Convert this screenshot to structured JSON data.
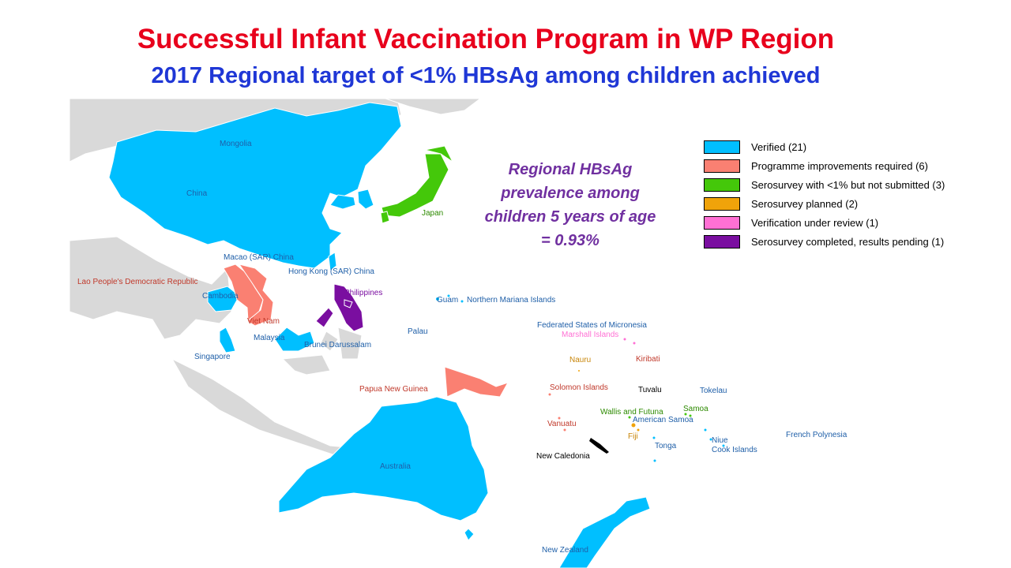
{
  "title": "Successful Infant Vaccination Program in WP Region",
  "subtitle": "2017  Regional target of <1% HBsAg among children achieved",
  "note": "Regional HBsAg prevalence among children 5 years of age = 0.93%",
  "colors": {
    "verified": "#00bfff",
    "improvements": "#fa8072",
    "not_submitted": "#44c80a",
    "planned": "#f0a30a",
    "under_review": "#ff70d4",
    "pending": "#7a0ea0",
    "background_land": "#d9d9d9"
  },
  "legend": [
    {
      "key": "verified",
      "label": "Verified (21)"
    },
    {
      "key": "improvements",
      "label": "Programme improvements required (6)"
    },
    {
      "key": "not_submitted",
      "label": "Serosurvey with <1% but not submitted (3)"
    },
    {
      "key": "planned",
      "label": "Serosurvey planned (2)"
    },
    {
      "key": "under_review",
      "label": "Verification under review (1)"
    },
    {
      "key": "pending",
      "label": "Serosurvey completed, results pending (1)"
    }
  ],
  "map_labels": [
    {
      "text": "Mongolia",
      "status": "verified"
    },
    {
      "text": "China",
      "status": "verified"
    },
    {
      "text": "Japan",
      "status": "not_submitted"
    },
    {
      "text": "Macao (SAR) China",
      "status": "verified"
    },
    {
      "text": "Hong Kong (SAR) China",
      "status": "verified"
    },
    {
      "text": "Lao People's Democratic Republic",
      "status": "improvements"
    },
    {
      "text": "Cambodia",
      "status": "verified"
    },
    {
      "text": "Viet Nam",
      "status": "improvements"
    },
    {
      "text": "Philippines",
      "status": "pending"
    },
    {
      "text": "Guam",
      "status": "verified"
    },
    {
      "text": "Northern Mariana Islands",
      "status": "verified"
    },
    {
      "text": "Federated States of Micronesia",
      "status": "verified"
    },
    {
      "text": "Marshall Islands",
      "status": "under_review"
    },
    {
      "text": "Palau",
      "status": "verified"
    },
    {
      "text": "Malaysia",
      "status": "verified"
    },
    {
      "text": "Brunei Darussalam",
      "status": "verified"
    },
    {
      "text": "Singapore",
      "status": "verified"
    },
    {
      "text": "Nauru",
      "status": "planned"
    },
    {
      "text": "Kiribati",
      "status": "improvements"
    },
    {
      "text": "Papua New Guinea",
      "status": "improvements"
    },
    {
      "text": "Solomon Islands",
      "status": "improvements"
    },
    {
      "text": "Tuvalu",
      "status": "none"
    },
    {
      "text": "Tokelau",
      "status": "verified"
    },
    {
      "text": "Wallis and Futuna",
      "status": "not_submitted"
    },
    {
      "text": "Samoa",
      "status": "not_submitted"
    },
    {
      "text": "Vanuatu",
      "status": "improvements"
    },
    {
      "text": "American Samoa",
      "status": "verified"
    },
    {
      "text": "Fiji",
      "status": "planned"
    },
    {
      "text": "Tonga",
      "status": "verified"
    },
    {
      "text": "Niue",
      "status": "verified"
    },
    {
      "text": "Cook Islands",
      "status": "verified"
    },
    {
      "text": "French Polynesia",
      "status": "verified"
    },
    {
      "text": "New Caledonia",
      "status": "none"
    },
    {
      "text": "Australia",
      "status": "verified"
    },
    {
      "text": "New Zealand",
      "status": "verified"
    }
  ]
}
